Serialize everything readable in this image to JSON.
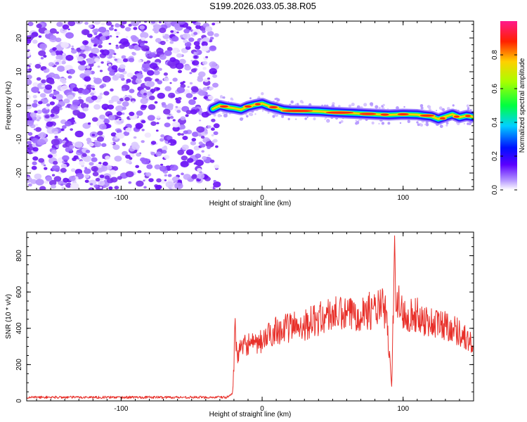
{
  "title": "S199.2026.033.05.38.R05",
  "colors": {
    "snr_line": "#e8302a",
    "noise_purple": "#7b2ff0",
    "axis": "#000000"
  },
  "chart_data": [
    {
      "type": "heatmap",
      "title": "S199.2026.033.05.38.R05",
      "xlabel": "Height of straight line (km)",
      "ylabel": "Frequency (Hz)",
      "xlim": [
        -167,
        150
      ],
      "ylim": [
        -25,
        25
      ],
      "xticks": [
        -100,
        0,
        100
      ],
      "yticks": [
        -20,
        -10,
        0,
        10,
        20
      ],
      "xtick_labels": [
        "-100",
        "0",
        "100"
      ],
      "ytick_labels": [
        "-20",
        "-10",
        "0",
        "10",
        "20"
      ],
      "noise_region_x": [
        -167,
        -35
      ],
      "signal_onset_x": -35,
      "ridge": {
        "x": [
          -35,
          -30,
          -25,
          -20,
          -15,
          -10,
          -5,
          0,
          5,
          10,
          15,
          20,
          30,
          40,
          50,
          60,
          70,
          80,
          90,
          100,
          110,
          115,
          120,
          125,
          130,
          135,
          140,
          145,
          150
        ],
        "freq": [
          -1.0,
          0.0,
          -0.5,
          -0.8,
          -1.2,
          -0.3,
          0.2,
          0.6,
          -0.2,
          -0.7,
          -1.3,
          -1.5,
          -1.6,
          -1.7,
          -2.0,
          -2.2,
          -2.4,
          -2.6,
          -2.8,
          -2.6,
          -2.7,
          -3.0,
          -3.2,
          -4.0,
          -3.3,
          -2.6,
          -3.5,
          -3.0,
          -3.4
        ]
      },
      "colorbar": {
        "label": "Normalized spectral amplitude",
        "range": [
          0.0,
          1.0
        ],
        "ticks": [
          0.0,
          0.2,
          0.4,
          0.6,
          0.8
        ],
        "tick_labels": [
          "0.0",
          "0.2",
          "0.4",
          "0.6",
          "0.8"
        ]
      }
    },
    {
      "type": "line",
      "xlabel": "Height of straight line (km)",
      "ylabel": "SNR (10 * v/v)",
      "xlim": [
        -167,
        150
      ],
      "ylim": [
        0,
        930
      ],
      "xticks": [
        -100,
        0,
        100
      ],
      "yticks": [
        0,
        200,
        400,
        600,
        800
      ],
      "xtick_labels": [
        "-100",
        "0",
        "100"
      ],
      "ytick_labels": [
        "0",
        "200",
        "400",
        "600",
        "800"
      ],
      "series": [
        {
          "name": "SNR",
          "x": [
            -167,
            -150,
            -120,
            -90,
            -60,
            -40,
            -25,
            -21,
            -20,
            -19.5,
            -18,
            -15,
            -10,
            -5,
            0,
            5,
            10,
            15,
            20,
            30,
            40,
            50,
            60,
            70,
            80,
            85,
            88,
            92,
            94,
            95,
            96,
            98,
            100,
            110,
            120,
            130,
            140,
            150
          ],
          "values": [
            20,
            20,
            20,
            20,
            20,
            20,
            20,
            40,
            200,
            420,
            260,
            280,
            320,
            300,
            330,
            360,
            400,
            390,
            410,
            420,
            450,
            480,
            470,
            490,
            500,
            520,
            480,
            70,
            910,
            500,
            560,
            510,
            480,
            470,
            430,
            420,
            380,
            300
          ]
        }
      ]
    }
  ],
  "colorbar_label": "Normalized spectral amplitude",
  "top_panel": {
    "xlabel": "Height of straight line (km)",
    "ylabel": "Frequency (Hz)"
  },
  "bottom_panel": {
    "xlabel": "Height of straight line (km)",
    "ylabel": "SNR (10 * v/v)"
  }
}
